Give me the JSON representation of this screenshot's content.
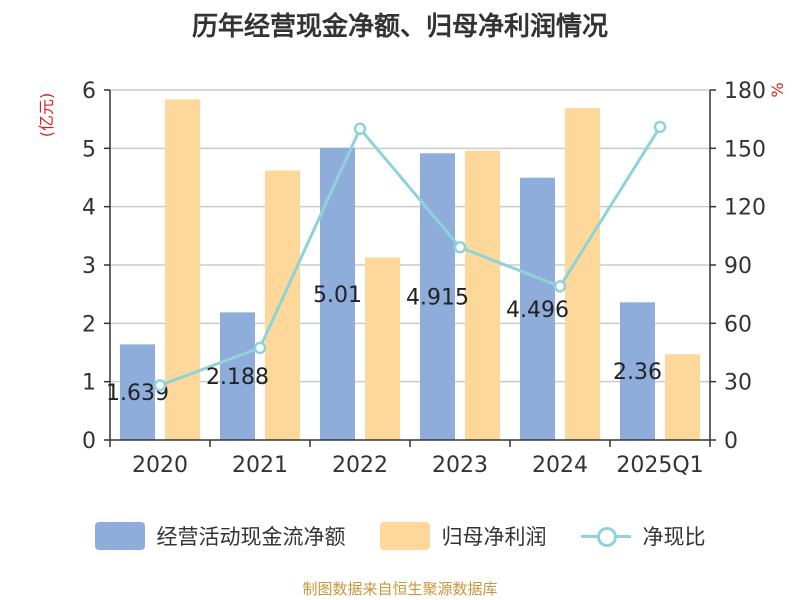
{
  "chart_data": {
    "type": "bar",
    "title": "历年经营现金净额、归母净利润情况",
    "categories": [
      "2020",
      "2021",
      "2022",
      "2023",
      "2024",
      "2025Q1"
    ],
    "left_axis": {
      "unit_label": "(亿元)",
      "ylim": [
        0,
        6
      ],
      "ticks": [
        "0",
        "1",
        "2",
        "3",
        "4",
        "5",
        "6"
      ]
    },
    "right_axis": {
      "unit_label": "%",
      "ylim": [
        0,
        180
      ],
      "ticks": [
        "0",
        "30",
        "60",
        "90",
        "120",
        "150",
        "180"
      ]
    },
    "series": [
      {
        "name": "经营活动现金流净额",
        "type": "bar",
        "axis": "left",
        "color": "#8eaddb",
        "values": [
          1.639,
          2.188,
          5.01,
          4.915,
          4.496,
          2.36
        ],
        "labels": [
          "1.639",
          "2.188",
          "5.01",
          "4.915",
          "4.496",
          "2.36"
        ]
      },
      {
        "name": "归母净利润",
        "type": "bar",
        "axis": "left",
        "color": "#fdd89a",
        "values": [
          5.84,
          4.62,
          3.13,
          4.96,
          5.69,
          1.47
        ]
      },
      {
        "name": "净现比",
        "type": "line",
        "axis": "right",
        "color": "#8ed3da",
        "values": [
          28.1,
          47.4,
          160.1,
          99.1,
          79.0,
          161.0
        ]
      }
    ],
    "grid": true,
    "legend_position": "bottom"
  },
  "source_text": "制图数据来自恒生聚源数据库"
}
